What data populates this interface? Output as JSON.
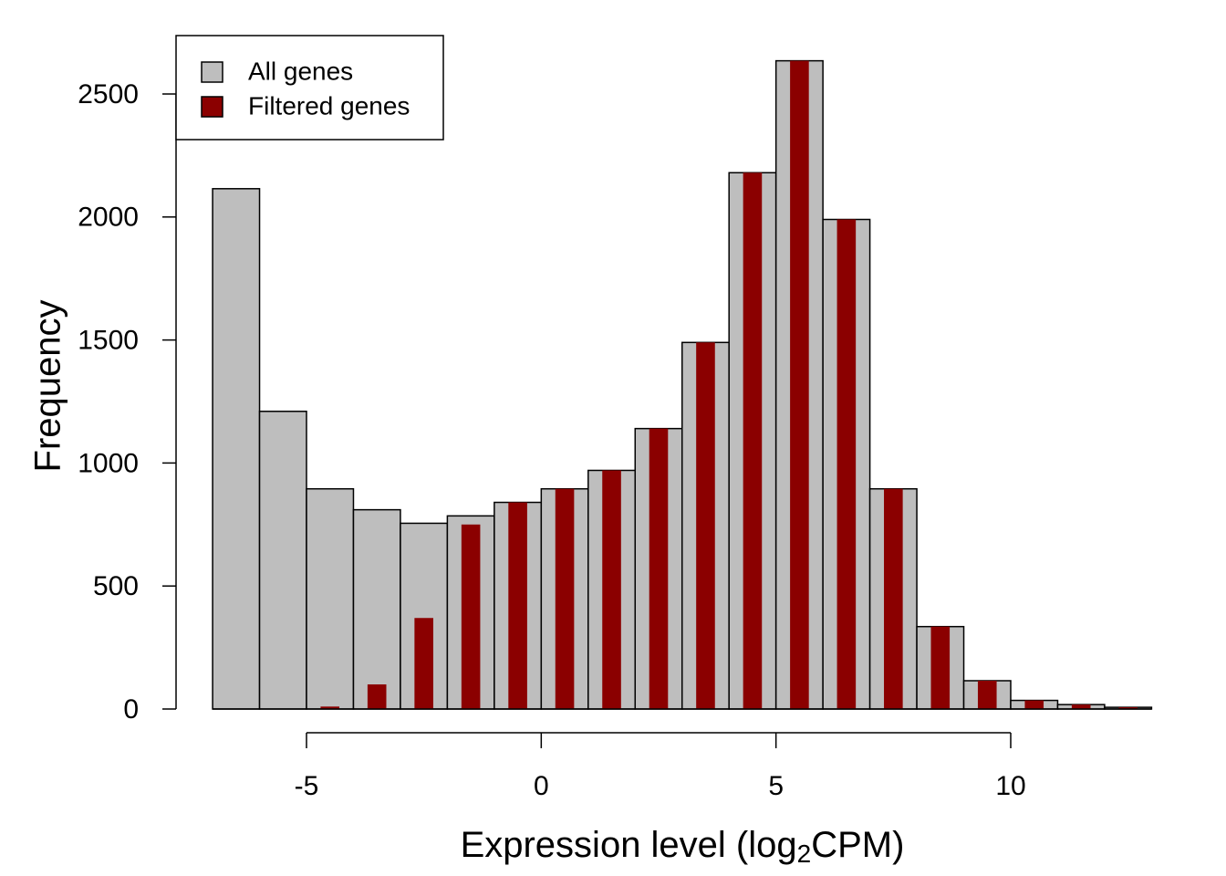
{
  "chart_data": {
    "type": "histogram",
    "x_label": {
      "before": "Expression level (log",
      "sub": "2",
      "after": "CPM)"
    },
    "y_label": "Frequency",
    "bins": [
      -7,
      -6,
      -5,
      -4,
      -3,
      -2,
      -1,
      0,
      1,
      2,
      3,
      4,
      5,
      6,
      7,
      8,
      9,
      10,
      11,
      12,
      13
    ],
    "series": [
      {
        "name": "All genes",
        "color": "#bebebe",
        "values": [
          2115,
          1210,
          895,
          810,
          755,
          785,
          840,
          895,
          970,
          1140,
          1490,
          2180,
          2635,
          1990,
          895,
          335,
          115,
          35,
          18,
          7
        ]
      },
      {
        "name": "Filtered genes",
        "color": "#8b0000",
        "values": [
          0,
          0,
          10,
          100,
          370,
          750,
          840,
          895,
          970,
          1140,
          1490,
          2180,
          2635,
          1990,
          895,
          335,
          115,
          35,
          18,
          7
        ]
      }
    ],
    "xlim": [
      -5,
      10
    ],
    "xticks": [
      -5,
      0,
      5,
      10
    ],
    "ylim": [
      0,
      2500
    ],
    "yticks": [
      0,
      500,
      1000,
      1500,
      2000,
      2500
    ],
    "legend": "topleft"
  }
}
